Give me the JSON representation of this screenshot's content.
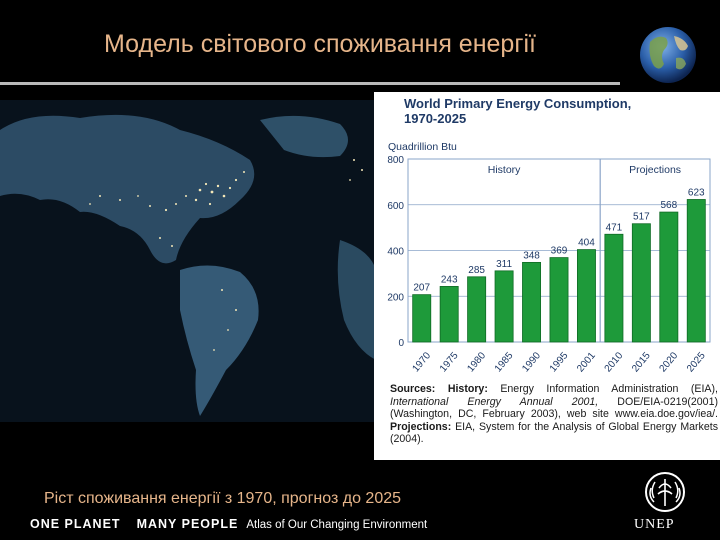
{
  "slide": {
    "title": "Модель світового споживання енергії",
    "caption": "Ріст споживання енергії з 1970, прогноз до 2025"
  },
  "footer": {
    "left1": "ONE PLANET",
    "left2": "MANY PEOPLE",
    "atlas": "Atlas of Our Changing Environment",
    "unep": "UNEP"
  },
  "colors": {
    "title_text": "#e6b58a",
    "bar_fill": "#1e9a3a",
    "bar_edge": "#0f6a24",
    "grid": "#8aa4c8",
    "panel_bg": "#ffffff"
  },
  "chart_data": {
    "type": "bar",
    "title": "World Primary Energy Consumption, 1970-2025",
    "title_line1": "World Primary Energy Consumption,",
    "title_line2": "1970-2025",
    "ylabel": "Quadrillion Btu",
    "ylim": [
      0,
      800
    ],
    "yticks": [
      0,
      200,
      400,
      600,
      800
    ],
    "categories": [
      "1970",
      "1975",
      "1980",
      "1985",
      "1990",
      "1995",
      "2001",
      "2010",
      "2015",
      "2020",
      "2025"
    ],
    "values": [
      207,
      243,
      285,
      311,
      348,
      369,
      404,
      471,
      517,
      568,
      623
    ],
    "sections": [
      {
        "label": "History",
        "from_index": 0,
        "to_index": 6
      },
      {
        "label": "Projections",
        "from_index": 7,
        "to_index": 10
      }
    ],
    "grid": true,
    "source_parts": {
      "label1": "Sources:",
      "label1b": "History:",
      "text1": "Energy Information Administration (EIA),",
      "text2_italic": "International Energy Annual 2001,",
      "text2": "DOE/EIA-0219(2001) (Washington, DC, February 2003), web site www.eia.doe.gov/iea/.",
      "label2": "Projections:",
      "text3": "EIA, System for the Analysis of Global Energy Markets (2004)."
    }
  }
}
